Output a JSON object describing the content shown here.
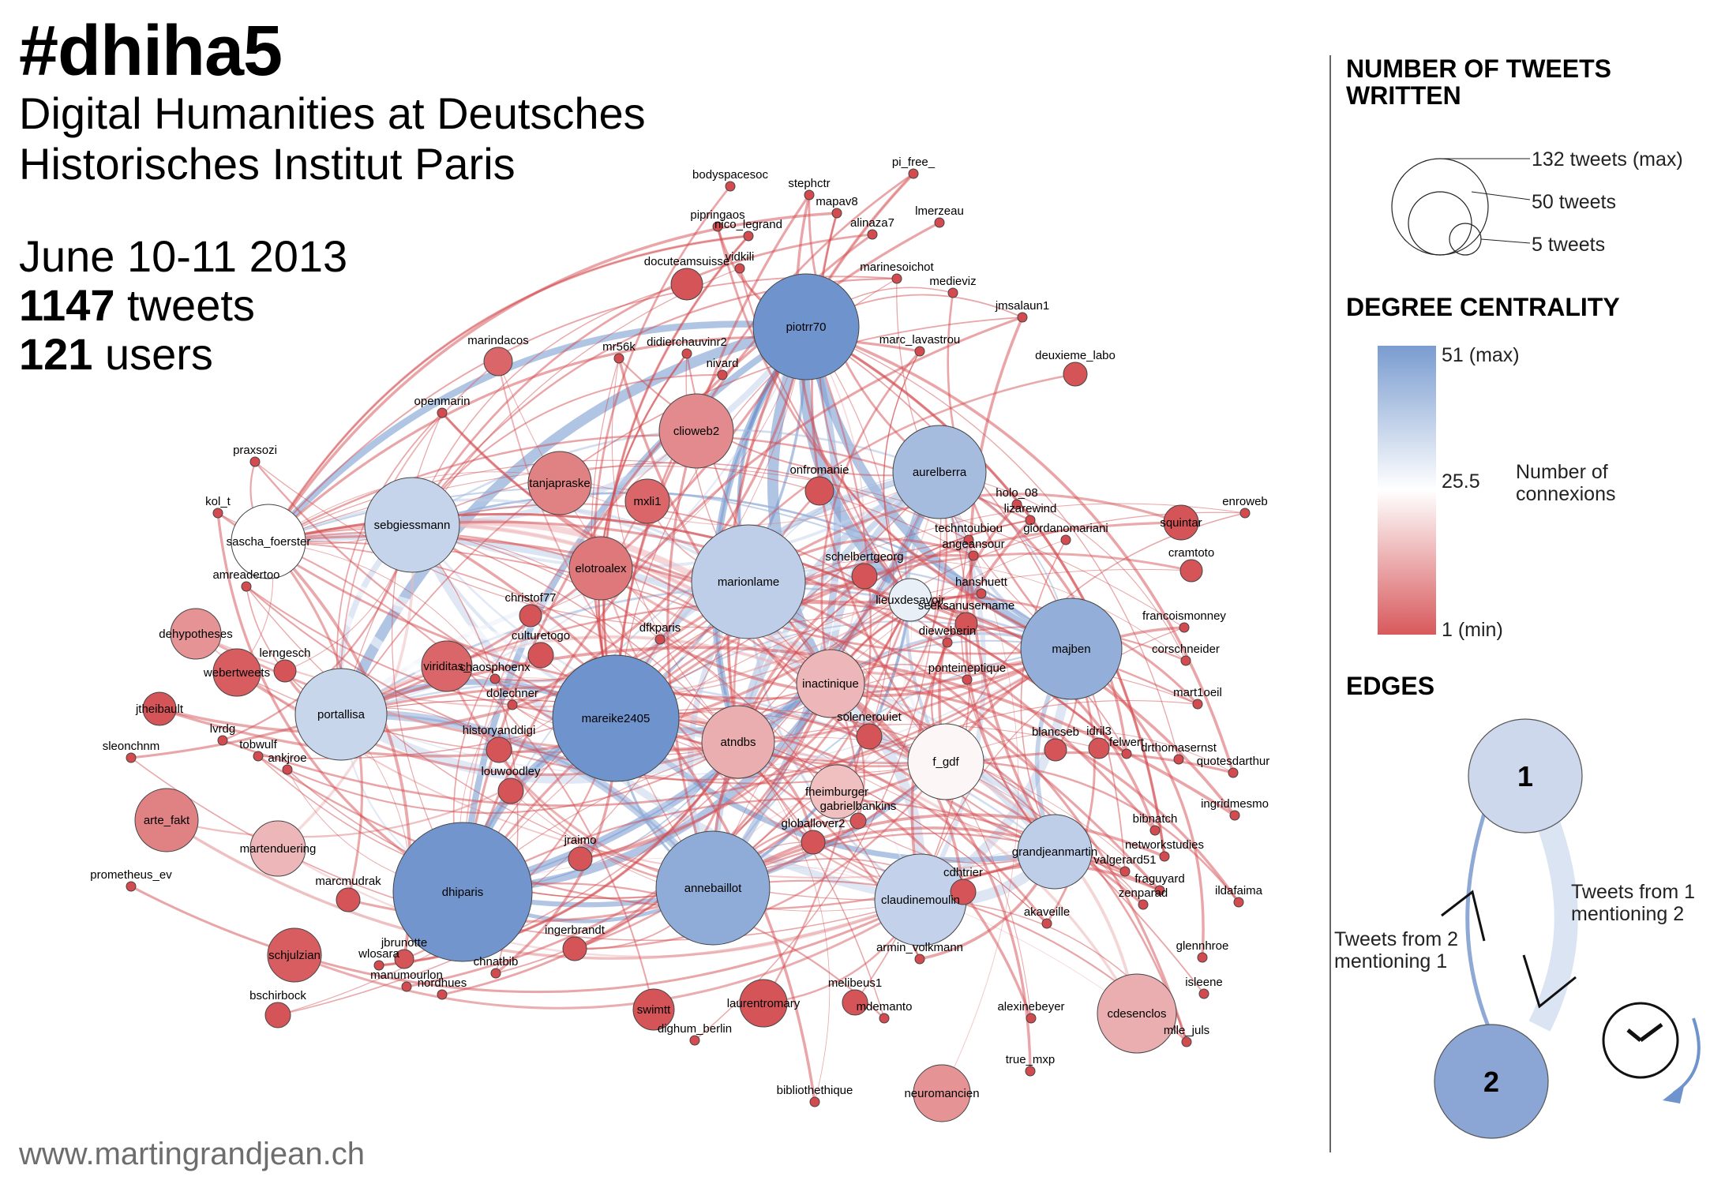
{
  "header": {
    "title": "#dhiha5",
    "subtitle_line1": "Digital Humanities at Deutsches",
    "subtitle_line2": "Historisches Institut Paris",
    "date": "June 10-11 2013",
    "tweets_count": "1147",
    "tweets_word": " tweets",
    "users_count": "121",
    "users_word": " users"
  },
  "credit": "www.martingrandjean.ch",
  "legend": {
    "size_heading": "NUMBER OF TWEETS WRITTEN",
    "size_items": [
      "132 tweets (max)",
      "50 tweets",
      "5 tweets"
    ],
    "color_heading": "DEGREE CENTRALITY",
    "color_max": "51 (max)",
    "color_mid": "25.5",
    "color_min": "1 (min)",
    "color_caption": "Number of connexions",
    "edges_heading": "EDGES",
    "edge_node1": "1",
    "edge_node2": "2",
    "edge_label_1to2": "Tweets from 1 mentioning 2",
    "edge_label_2to1": "Tweets from 2 mentioning 1"
  },
  "colors": {
    "blue": "#6f93cc",
    "white": "#ffffff",
    "red": "#d34b4f"
  },
  "network": {
    "nodes": [
      {
        "id": "piotrr70",
        "t": 1.0
      },
      {
        "id": "mareike2405",
        "t": 1.0
      },
      {
        "id": "dhiparis",
        "t": 0.98
      },
      {
        "id": "annebaillot",
        "t": 0.78
      },
      {
        "id": "majben",
        "t": 0.75
      },
      {
        "id": "aurelberra",
        "t": 0.62
      },
      {
        "id": "marionlame",
        "t": 0.45
      },
      {
        "id": "claudinemoulin",
        "t": 0.42
      },
      {
        "id": "sebgiessmann",
        "t": 0.4
      },
      {
        "id": "portallisa",
        "t": 0.38
      },
      {
        "id": "grandjeanmartin",
        "t": 0.45
      },
      {
        "id": "lieuxdesavoir",
        "t": 0.15
      },
      {
        "id": "sascha_foerster",
        "t": 0.0
      },
      {
        "id": "f_gdf",
        "t": -0.05
      },
      {
        "id": "cdesenclos",
        "t": -0.45
      },
      {
        "id": "inactinique",
        "t": -0.4
      },
      {
        "id": "atndbs",
        "t": -0.45
      },
      {
        "id": "fheimburger",
        "t": -0.35
      },
      {
        "id": "martenduering",
        "t": -0.4
      },
      {
        "id": "neuromancien",
        "t": -0.6
      },
      {
        "id": "clioweb2",
        "t": -0.65
      },
      {
        "id": "tanjapraske",
        "t": -0.7
      },
      {
        "id": "elotroalex",
        "t": -0.75
      },
      {
        "id": "dehypotheses",
        "t": -0.6
      },
      {
        "id": "arte_fakt",
        "t": -0.7
      },
      {
        "id": "viriditas_",
        "t": -0.85
      },
      {
        "id": "mxli1",
        "t": -0.85
      },
      {
        "id": "schjulzian",
        "t": -0.9
      },
      {
        "id": "laurentromary",
        "t": -0.95
      },
      {
        "id": "swimtt",
        "t": -0.95
      },
      {
        "id": "webertweets",
        "t": -0.9
      },
      {
        "id": "jtheibault",
        "t": -0.95
      },
      {
        "id": "squintar",
        "t": -0.95
      },
      {
        "id": "marindacos",
        "t": -0.85
      },
      {
        "id": "docuteamsuisse",
        "t": -0.95
      },
      {
        "id": "onfromanie",
        "t": -0.95
      },
      {
        "id": "schelbertgeorg",
        "t": -0.95
      },
      {
        "id": "seeksanusername",
        "t": -0.95
      },
      {
        "id": "culturetogo",
        "t": -0.95
      },
      {
        "id": "christof77",
        "t": -0.95
      },
      {
        "id": "historyanddigi",
        "t": -0.95
      },
      {
        "id": "louwoodley",
        "t": -0.95
      },
      {
        "id": "jraimo",
        "t": -0.95
      },
      {
        "id": "solenerouiet",
        "t": -0.95
      },
      {
        "id": "globallover2",
        "t": -0.95
      },
      {
        "id": "cdhtrier",
        "t": -0.95
      },
      {
        "id": "melibeus1",
        "t": -0.95
      },
      {
        "id": "ingerbrandt",
        "t": -0.95
      },
      {
        "id": "marcmudrak",
        "t": -0.95
      },
      {
        "id": "jbrunotte",
        "t": -0.95
      },
      {
        "id": "bschirbock",
        "t": -0.95
      },
      {
        "id": "idril3",
        "t": -0.95
      },
      {
        "id": "blancseb",
        "t": -0.95
      },
      {
        "id": "cramtoto",
        "t": -0.95
      },
      {
        "id": "deuxieme_labo",
        "t": -0.95
      },
      {
        "id": "lerngesch",
        "t": -0.95
      },
      {
        "id": "gabrielbankins",
        "t": -0.95
      },
      {
        "id": "bodyspacesoc",
        "t": -1
      },
      {
        "id": "stephctr",
        "t": -1
      },
      {
        "id": "mapav8",
        "t": -1
      },
      {
        "id": "pi_free_",
        "t": -1
      },
      {
        "id": "pipringaos",
        "t": -1
      },
      {
        "id": "nico_legrand",
        "t": -1
      },
      {
        "id": "alinaza7",
        "t": -1
      },
      {
        "id": "lmerzeau",
        "t": -1
      },
      {
        "id": "vidkili",
        "t": -1
      },
      {
        "id": "marinesoichot",
        "t": -1
      },
      {
        "id": "medieviz",
        "t": -1
      },
      {
        "id": "mr56k",
        "t": -1
      },
      {
        "id": "didierchauvinr2",
        "t": -1
      },
      {
        "id": "nivard",
        "t": -1
      },
      {
        "id": "marc_lavastrou",
        "t": -1
      },
      {
        "id": "jmsalaun1",
        "t": -1
      },
      {
        "id": "openmarin",
        "t": -1
      },
      {
        "id": "praxsozi",
        "t": -1
      },
      {
        "id": "kol_t",
        "t": -1
      },
      {
        "id": "amreadertoo",
        "t": -1
      },
      {
        "id": "chaosphoenx",
        "t": -1
      },
      {
        "id": "dolechner",
        "t": -1
      },
      {
        "id": "dfkparis",
        "t": -1
      },
      {
        "id": "lvrdg",
        "t": -1
      },
      {
        "id": "sleonchnm",
        "t": -1
      },
      {
        "id": "tobwulf",
        "t": -1
      },
      {
        "id": "ankjroe",
        "t": -1
      },
      {
        "id": "prometheus_ev",
        "t": -1
      },
      {
        "id": "wlosara",
        "t": -1
      },
      {
        "id": "manumourlon",
        "t": -1
      },
      {
        "id": "nordhues",
        "t": -1
      },
      {
        "id": "chnatbib",
        "t": -1
      },
      {
        "id": "dighum_berlin",
        "t": -1
      },
      {
        "id": "bibliothethique",
        "t": -1
      },
      {
        "id": "mdemanto",
        "t": -1
      },
      {
        "id": "armin_volkmann",
        "t": -1
      },
      {
        "id": "akaveille",
        "t": -1
      },
      {
        "id": "alexinebeyer",
        "t": -1
      },
      {
        "id": "true_mxp",
        "t": -1
      },
      {
        "id": "mlle_juls",
        "t": -1
      },
      {
        "id": "isleene",
        "t": -1
      },
      {
        "id": "glennhroe",
        "t": -1
      },
      {
        "id": "ildafaima",
        "t": -1
      },
      {
        "id": "fraguyard",
        "t": -1
      },
      {
        "id": "zenparad",
        "t": -1
      },
      {
        "id": "valgerard51",
        "t": -1
      },
      {
        "id": "networkstudies",
        "t": -1
      },
      {
        "id": "bibnatch",
        "t": -1
      },
      {
        "id": "ingridmesmo",
        "t": -1
      },
      {
        "id": "quotesdarthur",
        "t": -1
      },
      {
        "id": "drthomasernst",
        "t": -1
      },
      {
        "id": "felwert",
        "t": -1
      },
      {
        "id": "mart1oeil",
        "t": -1
      },
      {
        "id": "corschneider",
        "t": -1
      },
      {
        "id": "francoismonney",
        "t": -1
      },
      {
        "id": "enroweb",
        "t": -1
      },
      {
        "id": "giordanomariani",
        "t": -1
      },
      {
        "id": "lizarewind",
        "t": -1
      },
      {
        "id": "holo_08",
        "t": -1
      },
      {
        "id": "techntoubiou",
        "t": -1
      },
      {
        "id": "angeansour",
        "t": -1
      },
      {
        "id": "hanshuett",
        "t": -1
      },
      {
        "id": "dieweberin",
        "t": -1
      },
      {
        "id": "ponteineptique",
        "t": -1
      }
    ]
  }
}
